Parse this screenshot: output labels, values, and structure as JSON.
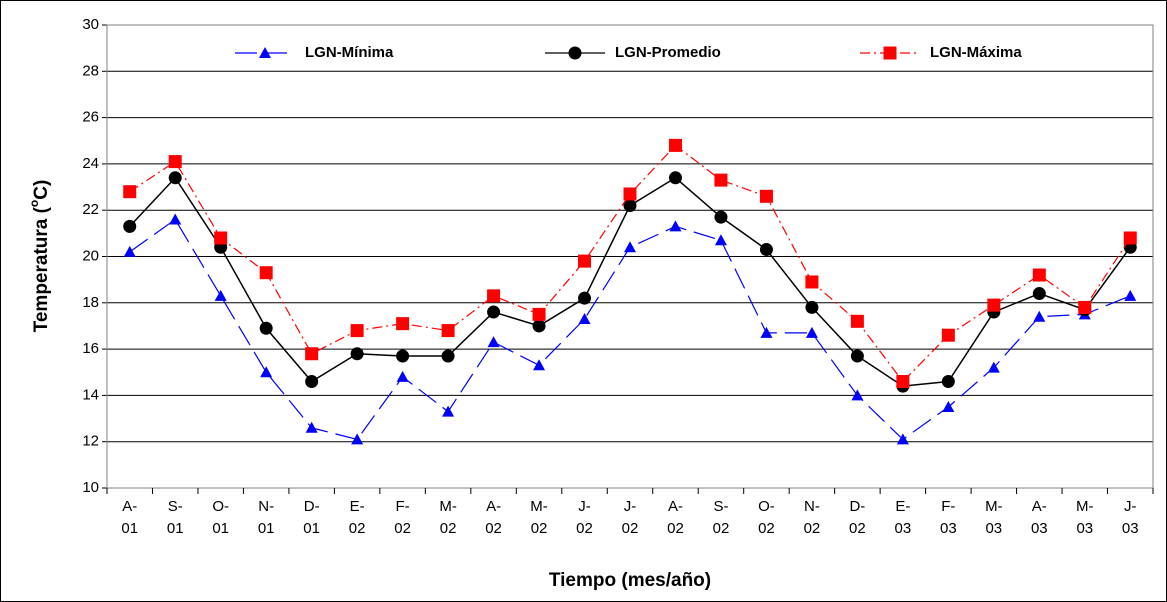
{
  "chart_data": {
    "type": "line",
    "x_label": "Tiempo (mes/año)",
    "y_label_parts": [
      "Temperatura (",
      "o",
      "C)"
    ],
    "categories": [
      [
        "A-",
        "01"
      ],
      [
        "S-",
        "01"
      ],
      [
        "O-",
        "01"
      ],
      [
        "N-",
        "01"
      ],
      [
        "D-",
        "01"
      ],
      [
        "E-",
        "02"
      ],
      [
        "F-",
        "02"
      ],
      [
        "M-",
        "02"
      ],
      [
        "A-",
        "02"
      ],
      [
        "M-",
        "02"
      ],
      [
        "J-",
        "02"
      ],
      [
        "J-",
        "02"
      ],
      [
        "A-",
        "02"
      ],
      [
        "S-",
        "02"
      ],
      [
        "O-",
        "02"
      ],
      [
        "N-",
        "02"
      ],
      [
        "D-",
        "02"
      ],
      [
        "E-",
        "03"
      ],
      [
        "F-",
        "03"
      ],
      [
        "M-",
        "03"
      ],
      [
        "A-",
        "03"
      ],
      [
        "M-",
        "03"
      ],
      [
        "J-",
        "03"
      ]
    ],
    "series": [
      {
        "name": "LGN-Mínima",
        "color": "#0000ff",
        "marker": "triangle",
        "dash": "22 8",
        "values": [
          20.2,
          21.6,
          18.3,
          15.0,
          12.6,
          12.1,
          14.8,
          13.3,
          16.3,
          15.3,
          17.3,
          20.4,
          21.3,
          20.7,
          16.7,
          16.7,
          14.0,
          12.1,
          13.5,
          15.2,
          17.4,
          17.5,
          18.3
        ]
      },
      {
        "name": "LGN-Promedio",
        "color": "#000000",
        "marker": "circle",
        "dash": "none",
        "values": [
          21.3,
          23.4,
          20.4,
          16.9,
          14.6,
          15.8,
          15.7,
          15.7,
          17.6,
          17.0,
          18.2,
          22.2,
          23.4,
          21.7,
          20.3,
          17.8,
          15.7,
          14.4,
          14.6,
          17.6,
          18.4,
          17.7,
          20.4
        ]
      },
      {
        "name": "LGN-Máxima",
        "color": "#ff0000",
        "marker": "square",
        "dash": "10 4 2 4",
        "values": [
          22.8,
          24.1,
          20.8,
          19.3,
          15.8,
          16.8,
          17.1,
          16.8,
          18.3,
          17.5,
          19.8,
          22.7,
          24.8,
          23.3,
          22.6,
          18.9,
          17.2,
          14.6,
          16.6,
          17.9,
          19.2,
          17.8,
          20.8
        ]
      }
    ],
    "ylim": [
      10,
      30
    ],
    "yticks": [
      10,
      12,
      14,
      16,
      18,
      20,
      22,
      24,
      26,
      28,
      30
    ],
    "grid": true,
    "legend": "top"
  }
}
